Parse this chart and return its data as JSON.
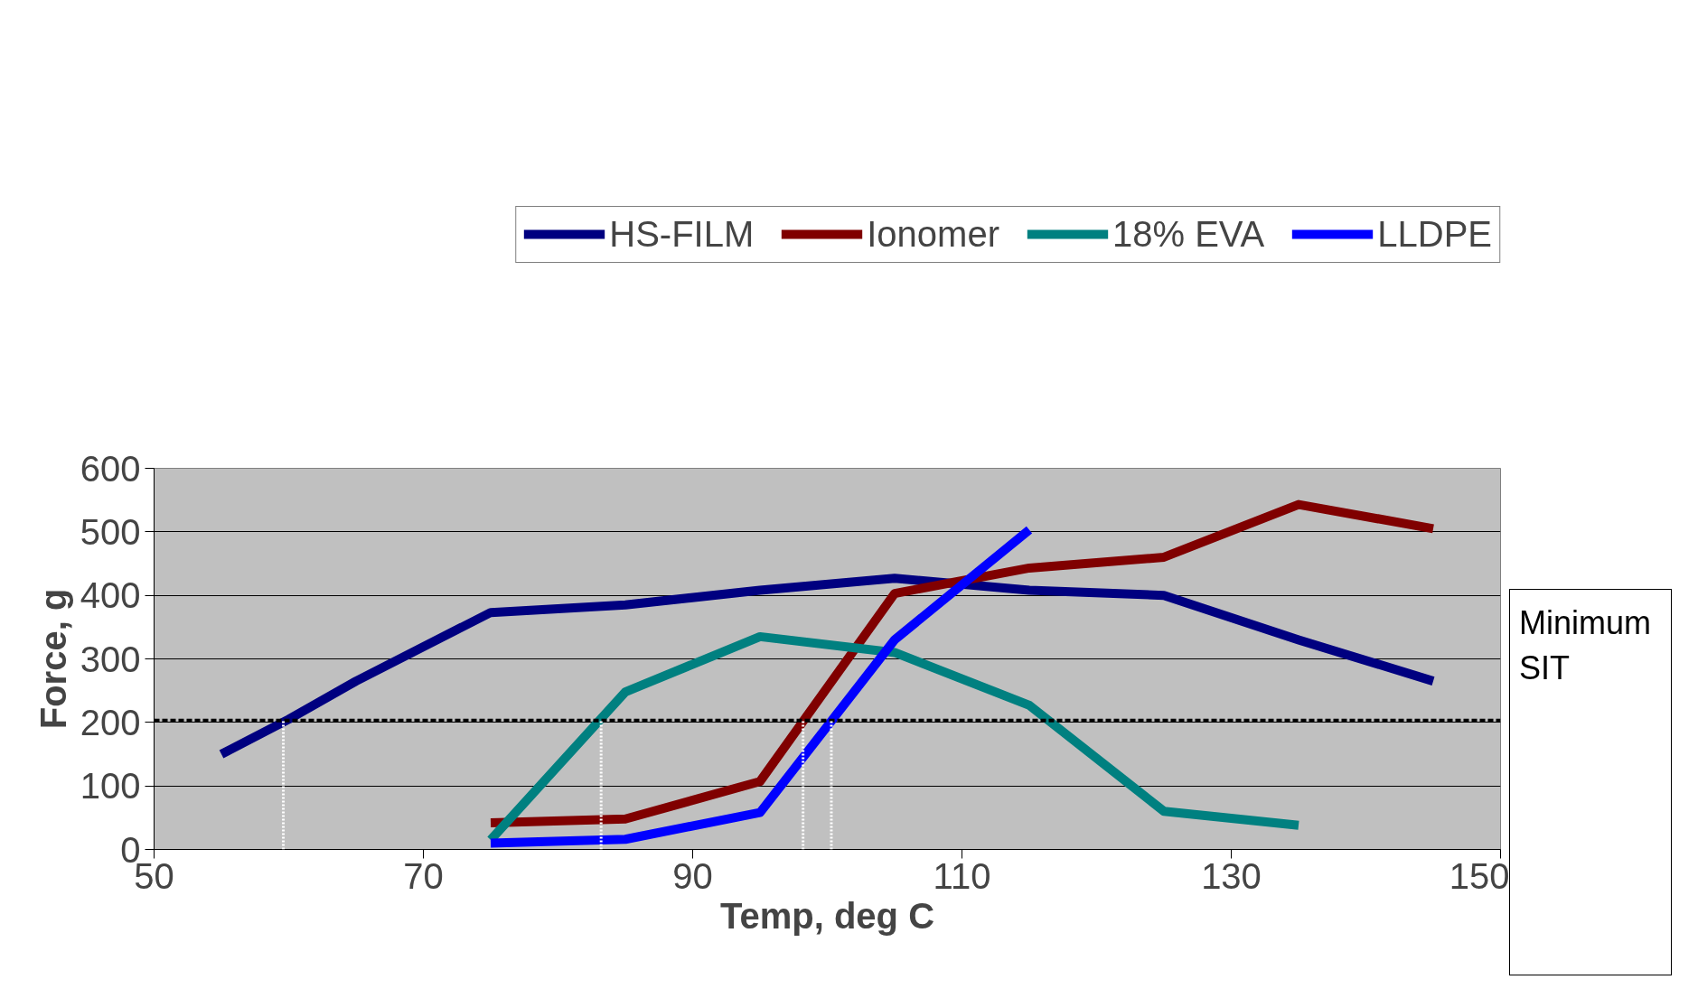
{
  "chart_data": {
    "type": "line",
    "xlabel": "Temp, deg C",
    "ylabel": "Force, g",
    "xlim": [
      50,
      150
    ],
    "xticks": [
      50,
      70,
      90,
      110,
      130,
      150
    ],
    "ylim": [
      0,
      600
    ],
    "yticks": [
      0,
      100,
      200,
      300,
      400,
      500,
      600
    ],
    "grid": "y",
    "legend": "top",
    "marker": "none",
    "line_style": "solid",
    "series": [
      {
        "name": "HS-FILM",
        "color": "#000080",
        "x": [
          55,
          60,
          65,
          75,
          85,
          95,
          105,
          115,
          125,
          135,
          145
        ],
        "values": [
          150,
          205,
          265,
          373,
          385,
          408,
          427,
          408,
          400,
          330,
          265
        ]
      },
      {
        "name": "Ionomer",
        "color": "#800000",
        "x": [
          75,
          85,
          95,
          105,
          115,
          125,
          135,
          145
        ],
        "values": [
          42,
          48,
          107,
          403,
          443,
          460,
          543,
          505
        ]
      },
      {
        "name": "18% EVA",
        "color": "#008080",
        "x": [
          75,
          85,
          95,
          105,
          115,
          125,
          135
        ],
        "values": [
          15,
          248,
          335,
          310,
          227,
          60,
          38
        ]
      },
      {
        "name": "LLDPE",
        "color": "#0000ff",
        "x": [
          75,
          85,
          95,
          105,
          115
        ],
        "values": [
          10,
          16,
          58,
          330,
          503
        ]
      }
    ],
    "ref_lines": [
      {
        "axis": "y",
        "value": 203,
        "label": "Minimum\nSIT",
        "color": "#000000",
        "line_style": "dashed"
      },
      {
        "axis": "x",
        "value": 59.6,
        "color": "#ffffff",
        "line_style": "dotted"
      },
      {
        "axis": "x",
        "value": 83.2,
        "color": "#ffffff",
        "line_style": "dotted"
      },
      {
        "axis": "x",
        "value": 98.2,
        "color": "#ffffff",
        "line_style": "dotted"
      },
      {
        "axis": "x",
        "value": 100.3,
        "color": "#ffffff",
        "line_style": "dotted"
      }
    ]
  }
}
